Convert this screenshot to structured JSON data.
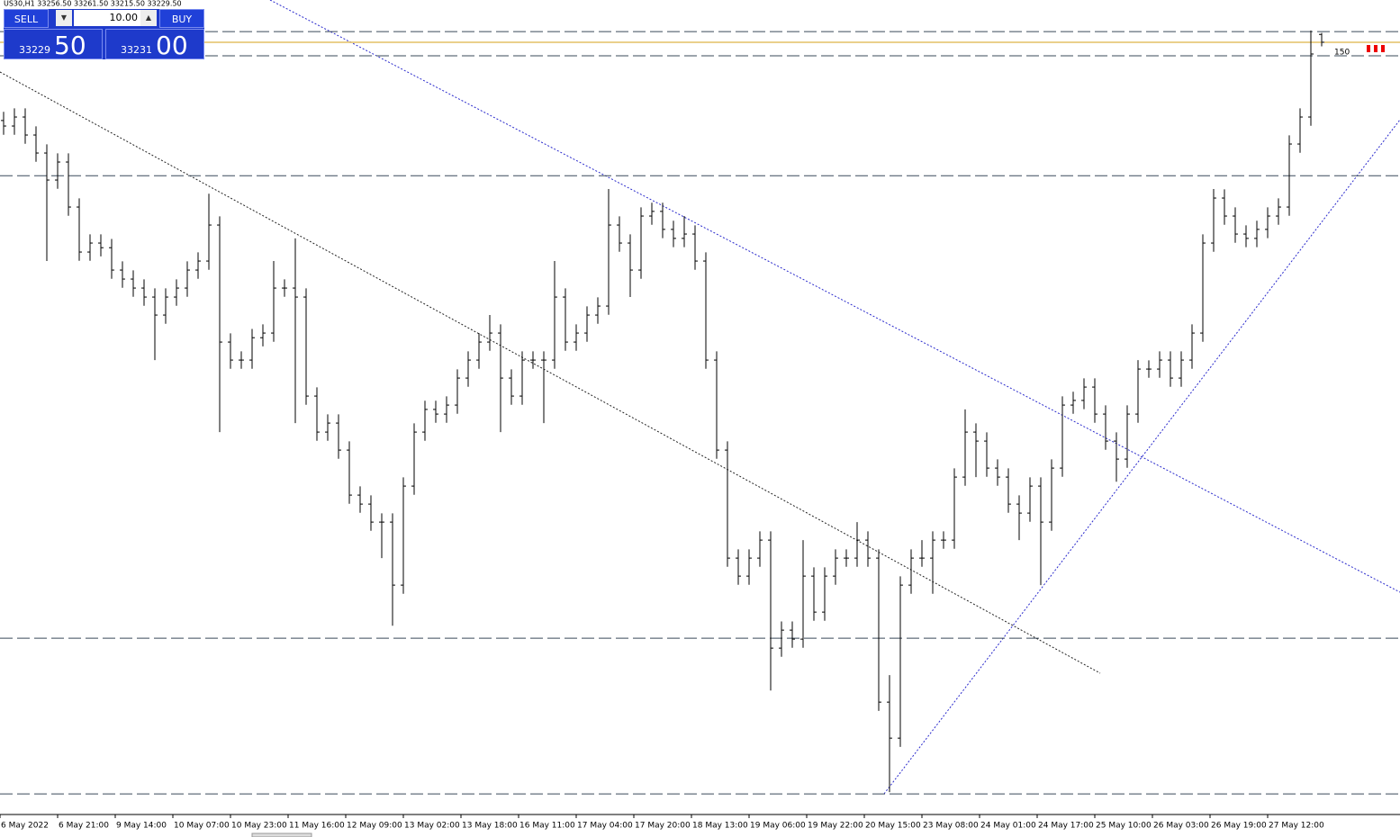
{
  "chart_data": {
    "type": "ohlc",
    "title": "US30,H1  33256.50 33261.50 33215.50 33229.50",
    "ylim": [
      30570,
      33375
    ],
    "xlabels": [
      "6 May 2022",
      "6 May 21:00",
      "9 May 14:00",
      "10 May 07:00",
      "10 May 23:00",
      "11 May 16:00",
      "12 May 09:00",
      "13 May 02:00",
      "13 May 18:00",
      "16 May 11:00",
      "17 May 04:00",
      "17 May 20:00",
      "18 May 13:00",
      "19 May 06:00",
      "19 May 22:00",
      "20 May 15:00",
      "23 May 08:00",
      "24 May 01:00",
      "24 May 17:00",
      "25 May 10:00",
      "26 May 03:00",
      "26 May 19:00",
      "27 May 12:00"
    ],
    "color": "#000000",
    "bid": 33229.5,
    "bid_color": "#d4a017",
    "hlines": [
      33266,
      33183,
      32770,
      31177,
      30641
    ],
    "level_label": "150",
    "open": [
      32960,
      32941,
      32972,
      32910,
      32848,
      32755,
      32817,
      32662,
      32507,
      32538,
      32522,
      32445,
      32414,
      32383,
      32352,
      32290,
      32352,
      32383,
      32445,
      32476,
      32600,
      32197,
      32135,
      32135,
      32212,
      32228,
      32383,
      32383,
      32352,
      32011,
      31887,
      31918,
      31825,
      31670,
      31639,
      31577,
      31577,
      31360,
      31701,
      31887,
      31965,
      31949,
      31980,
      32073,
      32135,
      32197,
      32228,
      32073,
      32011,
      32135,
      32135,
      32135,
      32352,
      32197,
      32228,
      32290,
      32321,
      32600,
      32538,
      32445,
      32631,
      32647,
      32585,
      32554,
      32569,
      32476,
      32135,
      31825,
      31453,
      31391,
      31453,
      31515,
      31143,
      31205,
      31174,
      31391,
      31267,
      31391,
      31453,
      31453,
      31515,
      31453,
      30957,
      30833,
      31360,
      31453,
      31453,
      31515,
      31515,
      31732,
      31887,
      31856,
      31763,
      31732,
      31639,
      31608,
      31701,
      31577,
      31763,
      31980,
      31996,
      32042,
      31949,
      31856,
      31794,
      31949,
      32104,
      32104,
      32135,
      32073,
      32135,
      32228,
      32538,
      32693,
      32631,
      32569,
      32554,
      32585,
      32631,
      32662,
      32879,
      32972,
      33256.5
    ],
    "high": [
      32990,
      33002,
      33002,
      32940,
      32878,
      32847,
      32847,
      32692,
      32568,
      32568,
      32552,
      32475,
      32444,
      32413,
      32382,
      32382,
      32413,
      32475,
      32506,
      32708,
      32630,
      32227,
      32165,
      32242,
      32258,
      32476,
      32413,
      32554,
      32382,
      32041,
      31948,
      31948,
      31855,
      31700,
      31669,
      31607,
      31607,
      31731,
      31917,
      31995,
      31995,
      32010,
      32103,
      32165,
      32228,
      32290,
      32258,
      32103,
      32165,
      32165,
      32165,
      32476,
      32382,
      32258,
      32320,
      32351,
      32724,
      32630,
      32568,
      32661,
      32677,
      32677,
      32615,
      32631,
      32599,
      32506,
      32165,
      31855,
      31483,
      31483,
      31545,
      31545,
      31235,
      31235,
      31515,
      31421,
      31421,
      31483,
      31483,
      31577,
      31545,
      31483,
      31050,
      31390,
      31483,
      31515,
      31545,
      31545,
      31762,
      31965,
      31917,
      31886,
      31793,
      31762,
      31669,
      31731,
      31731,
      31793,
      32010,
      32026,
      32072,
      32072,
      31979,
      31886,
      31979,
      32135,
      32134,
      32165,
      32165,
      32165,
      32258,
      32568,
      32724,
      32723,
      32661,
      32599,
      32615,
      32661,
      32692,
      32909,
      33002,
      33270,
      33261.5
    ],
    "low": [
      32911,
      32911,
      32880,
      32818,
      32476,
      32725,
      32632,
      32477,
      32477,
      32492,
      32415,
      32384,
      32353,
      32322,
      32135,
      32260,
      32322,
      32353,
      32415,
      32446,
      31887,
      32105,
      32105,
      32105,
      32182,
      32198,
      32353,
      31918,
      31981,
      31857,
      31857,
      31795,
      31640,
      31609,
      31547,
      31453,
      31220,
      31330,
      31671,
      31857,
      31919,
      31919,
      31950,
      32043,
      32105,
      32167,
      31887,
      31981,
      31981,
      32105,
      31918,
      32105,
      32167,
      32167,
      32198,
      32260,
      32291,
      32508,
      32352,
      32415,
      32601,
      32555,
      32524,
      32524,
      32446,
      32105,
      31795,
      31423,
      31361,
      31361,
      31423,
      30997,
      31113,
      31144,
      31144,
      31237,
      31237,
      31361,
      31423,
      31423,
      31423,
      30927,
      30647,
      30803,
      31330,
      31423,
      31330,
      31485,
      31485,
      31702,
      31732,
      31733,
      31702,
      31609,
      31515,
      31578,
      31360,
      31547,
      31733,
      31950,
      31966,
      31919,
      31826,
      31716,
      31764,
      31919,
      32074,
      32074,
      32043,
      32043,
      32105,
      32198,
      32508,
      32601,
      32539,
      32524,
      32524,
      32555,
      32601,
      32632,
      32849,
      32942,
      33215.5
    ],
    "close": [
      32941,
      32972,
      32910,
      32848,
      32755,
      32817,
      32662,
      32507,
      32538,
      32522,
      32445,
      32414,
      32383,
      32352,
      32290,
      32352,
      32383,
      32445,
      32476,
      32600,
      32197,
      32135,
      32135,
      32212,
      32228,
      32383,
      32383,
      32352,
      32011,
      31887,
      31918,
      31825,
      31670,
      31639,
      31577,
      31577,
      31360,
      31701,
      31887,
      31965,
      31949,
      31980,
      32073,
      32135,
      32197,
      32228,
      32073,
      32011,
      32135,
      32135,
      32135,
      32352,
      32197,
      32228,
      32290,
      32321,
      32600,
      32538,
      32445,
      32631,
      32647,
      32585,
      32554,
      32569,
      32476,
      32135,
      31825,
      31453,
      31391,
      31453,
      31515,
      31143,
      31205,
      31174,
      31391,
      31267,
      31391,
      31453,
      31453,
      31515,
      31453,
      30957,
      30833,
      31360,
      31453,
      31453,
      31515,
      31515,
      31732,
      31887,
      31856,
      31763,
      31732,
      31639,
      31608,
      31701,
      31577,
      31763,
      31980,
      31996,
      32042,
      31949,
      31856,
      31794,
      31949,
      32104,
      32104,
      32135,
      32073,
      32135,
      32228,
      32538,
      32693,
      32631,
      32569,
      32554,
      32585,
      32631,
      32662,
      32879,
      32972,
      33189,
      33229.5
    ]
  },
  "trade_panel": {
    "sell": "SELL",
    "buy": "BUY",
    "lot": "10.00",
    "bid_main": "33229",
    "bid_frac": "50",
    "ask_main": "33231",
    "ask_frac": "00"
  }
}
